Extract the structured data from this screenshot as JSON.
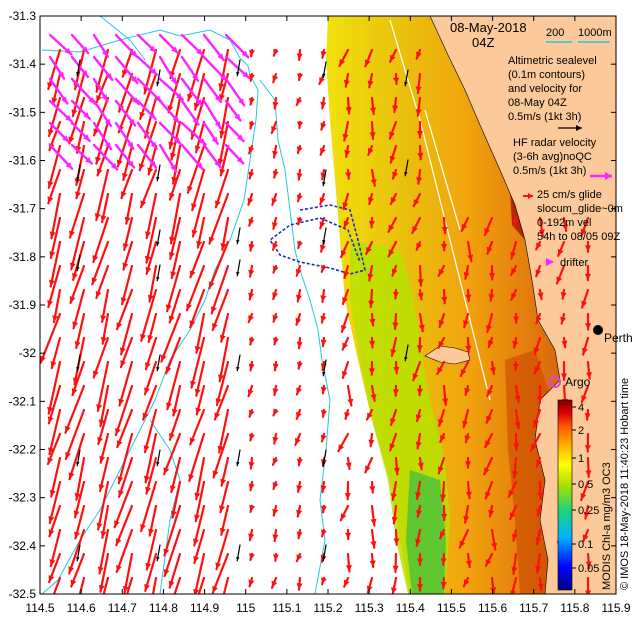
{
  "map": {
    "x_ticks": [
      "114.5",
      "114.6",
      "114.7",
      "114.8",
      "114.9",
      "115",
      "115.1",
      "115.2",
      "115.3",
      "115.4",
      "115.5",
      "115.6",
      "115.7",
      "115.8",
      "115.9"
    ],
    "y_ticks": [
      "-31.3",
      "-31.4",
      "-31.5",
      "-31.6",
      "-31.7",
      "-31.8",
      "-31.9",
      "-32",
      "-32.1",
      "-32.2",
      "-32.3",
      "-32.4",
      "-32.5"
    ],
    "lon_range": [
      114.5,
      115.9
    ],
    "lat_range": [
      -32.5,
      -31.3
    ]
  },
  "legend": {
    "date": "08-May-2018",
    "hour": "04Z",
    "bathy_200": "200",
    "bathy_1000": "1000m",
    "altimetric_lines": [
      "Altimetric sealevel",
      "(0.1m contours)",
      "and velocity for",
      "08-May 04Z",
      "0.5m/s (1kt 3h)"
    ],
    "hf_lines": [
      "HF radar velocity",
      "(3-6h avg)noQC",
      "0.5m/s (1kt 3h)"
    ],
    "glider_lines": [
      "25 cm/s glide",
      "slocum_glide~0m",
      "0-192m vel",
      "54h to 08/05 09Z"
    ],
    "drifter": "drifter",
    "argo": "Argo",
    "perth": "Perth"
  },
  "colorbar": {
    "ticks": [
      "4",
      "2",
      "1",
      "0.5",
      "0.25",
      "0.1",
      "0.05"
    ],
    "title": "MODIS Chl-a mg/m3 OC3"
  },
  "credit": "© IMOS 18-May-2018 11:40:23 Hobart time",
  "colors": {
    "land": "#fbc99a",
    "hf_vector": "#ff1010",
    "altimetry_vector": "#ff22ff",
    "bathy": "#22c8e0",
    "glider": "#1a2cb8",
    "argo": "#e040e0"
  }
}
